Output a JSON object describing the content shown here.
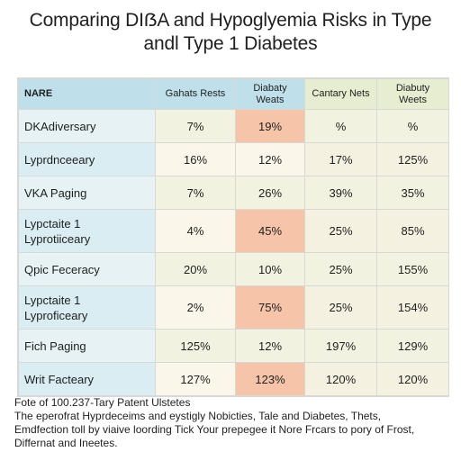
{
  "title_line1": "Comparing DIẞA and Hypoglyemia Risks in Type",
  "title_line2": "andl Type 1 Diabetes",
  "table": {
    "headers": [
      "NARE",
      "Gahats Rests",
      "Diabaty Weats",
      "Cantary Nets",
      "Diabuty Weets"
    ],
    "rows": [
      {
        "label": [
          "DKAdiversary"
        ],
        "values": [
          "7%",
          "19%",
          "%",
          "%"
        ],
        "highlight": 1
      },
      {
        "label": [
          "Lyprdnceeary"
        ],
        "values": [
          "16%",
          "12%",
          "17%",
          "125%"
        ],
        "highlight": -1
      },
      {
        "label": [
          "VKA Paging"
        ],
        "values": [
          "7%",
          "26%",
          "39%",
          "35%"
        ],
        "highlight": -1
      },
      {
        "label": [
          "Lypctaite 1",
          "Lyprotiiceary"
        ],
        "values": [
          "4%",
          "45%",
          "25%",
          "85%"
        ],
        "highlight": 1
      },
      {
        "label": [
          "Qpic Feceracy"
        ],
        "values": [
          "20%",
          "10%",
          "25%",
          "155%"
        ],
        "highlight": -1
      },
      {
        "label": [
          "Lypctaite 1",
          "Lyproficeary"
        ],
        "values": [
          "2%",
          "75%",
          "25%",
          "154%"
        ],
        "highlight": 1
      },
      {
        "label": [
          "Fich Paging"
        ],
        "values": [
          "125%",
          "12%",
          "197%",
          "129%"
        ],
        "highlight": -1
      },
      {
        "label": [
          "Writ Facteary"
        ],
        "values": [
          "127%",
          "123%",
          "120%",
          "120%"
        ],
        "highlight": 1
      }
    ]
  },
  "footer": [
    "Fote of 100.237-Tary Patent Ulstetes",
    "The eperofrat Hyprdeceims and eystigly Nobicties, Tale and Diabetes, Thets,",
    "Emdfection toll by viaive loording Tick Your prepegee it Nore Frcars to pory of Frost,",
    "Differnat and Ineetes."
  ]
}
